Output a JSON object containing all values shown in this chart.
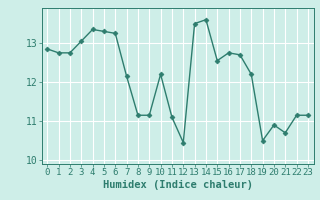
{
  "x": [
    0,
    1,
    2,
    3,
    4,
    5,
    6,
    7,
    8,
    9,
    10,
    11,
    12,
    13,
    14,
    15,
    16,
    17,
    18,
    19,
    20,
    21,
    22,
    23
  ],
  "y": [
    12.85,
    12.75,
    12.75,
    13.05,
    13.35,
    13.3,
    13.25,
    12.15,
    11.15,
    11.15,
    12.2,
    11.1,
    10.45,
    13.5,
    13.6,
    12.55,
    12.75,
    12.7,
    12.2,
    10.5,
    10.9,
    10.7,
    11.15,
    11.15
  ],
  "line_color": "#2e7d6e",
  "marker": "D",
  "markersize": 2.5,
  "linewidth": 1.0,
  "xlabel": "Humidex (Indice chaleur)",
  "ylim": [
    9.9,
    13.9
  ],
  "xlim": [
    -0.5,
    23.5
  ],
  "yticks": [
    10,
    11,
    12,
    13
  ],
  "xticks": [
    0,
    1,
    2,
    3,
    4,
    5,
    6,
    7,
    8,
    9,
    10,
    11,
    12,
    13,
    14,
    15,
    16,
    17,
    18,
    19,
    20,
    21,
    22,
    23
  ],
  "bg_color": "#ceeee8",
  "grid_color": "#ffffff",
  "tick_color": "#2e7d6e",
  "xlabel_fontsize": 7.5,
  "tick_fontsize": 6.5
}
